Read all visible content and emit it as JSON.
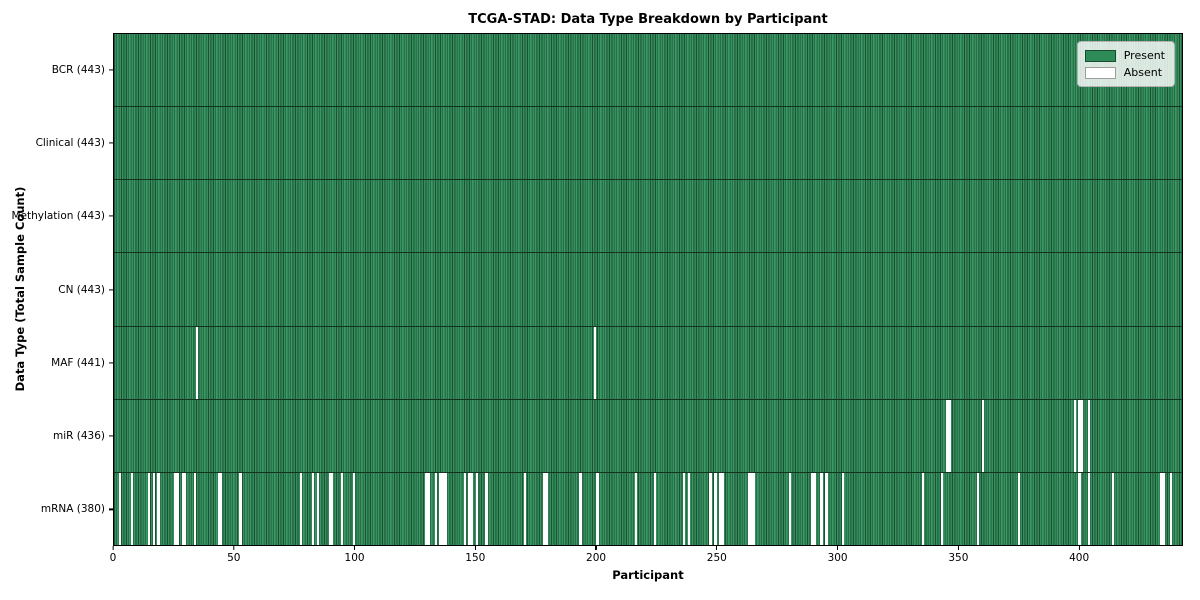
{
  "title": "TCGA-STAD: Data Type Breakdown by Participant",
  "legend": {
    "present_label": "Present",
    "absent_label": "Absent"
  },
  "colors": {
    "present": "#2e8b57",
    "present_edge": "#1d5134",
    "absent": "#ffffff",
    "row_separator": "#14331f",
    "plot_border": "#000000"
  },
  "chart_data": {
    "type": "heatmap",
    "title": "TCGA-STAD: Data Type Breakdown by Participant",
    "xlabel": "Participant",
    "ylabel": "Data Type (Total Sample Count)",
    "n_participants": 443,
    "x_range": [
      0,
      443
    ],
    "x_ticks": [
      0,
      50,
      100,
      150,
      200,
      250,
      300,
      350,
      400
    ],
    "grid": false,
    "legend_position": "upper right",
    "legend_entries": [
      {
        "label": "Present",
        "color": "#2e8b57"
      },
      {
        "label": "Absent",
        "color": "#ffffff"
      }
    ],
    "rows": [
      {
        "data_type": "BCR",
        "label": "BCR (443)",
        "present_count": 443,
        "absent_count": 0,
        "absent_participants": []
      },
      {
        "data_type": "Clinical",
        "label": "Clinical (443)",
        "present_count": 443,
        "absent_count": 0,
        "absent_participants": []
      },
      {
        "data_type": "Methylation",
        "label": "Methylation (443)",
        "present_count": 443,
        "absent_count": 0,
        "absent_participants": []
      },
      {
        "data_type": "CN",
        "label": "CN (443)",
        "present_count": 443,
        "absent_count": 0,
        "absent_participants": []
      },
      {
        "data_type": "MAF",
        "label": "MAF (441)",
        "present_count": 441,
        "absent_count": 2,
        "absent_participants": [
          34,
          199
        ]
      },
      {
        "data_type": "miR",
        "label": "miR (436)",
        "present_count": 436,
        "absent_count": 7,
        "absent_participants": [
          345,
          346,
          360,
          398,
          400,
          401,
          404
        ]
      },
      {
        "data_type": "mRNA",
        "label": "mRNA (380)",
        "present_count": 380,
        "absent_count": 63,
        "absent_participants": [
          2,
          7,
          14,
          16,
          18,
          25,
          26,
          28,
          29,
          33,
          43,
          44,
          52,
          77,
          82,
          84,
          89,
          90,
          94,
          99,
          129,
          130,
          133,
          135,
          136,
          137,
          145,
          147,
          148,
          150,
          154,
          170,
          178,
          179,
          193,
          200,
          216,
          224,
          236,
          238,
          247,
          249,
          251,
          252,
          263,
          264,
          265,
          280,
          289,
          290,
          293,
          295,
          302,
          335,
          343,
          358,
          375,
          400,
          404,
          414,
          434,
          435,
          438
        ]
      }
    ]
  }
}
